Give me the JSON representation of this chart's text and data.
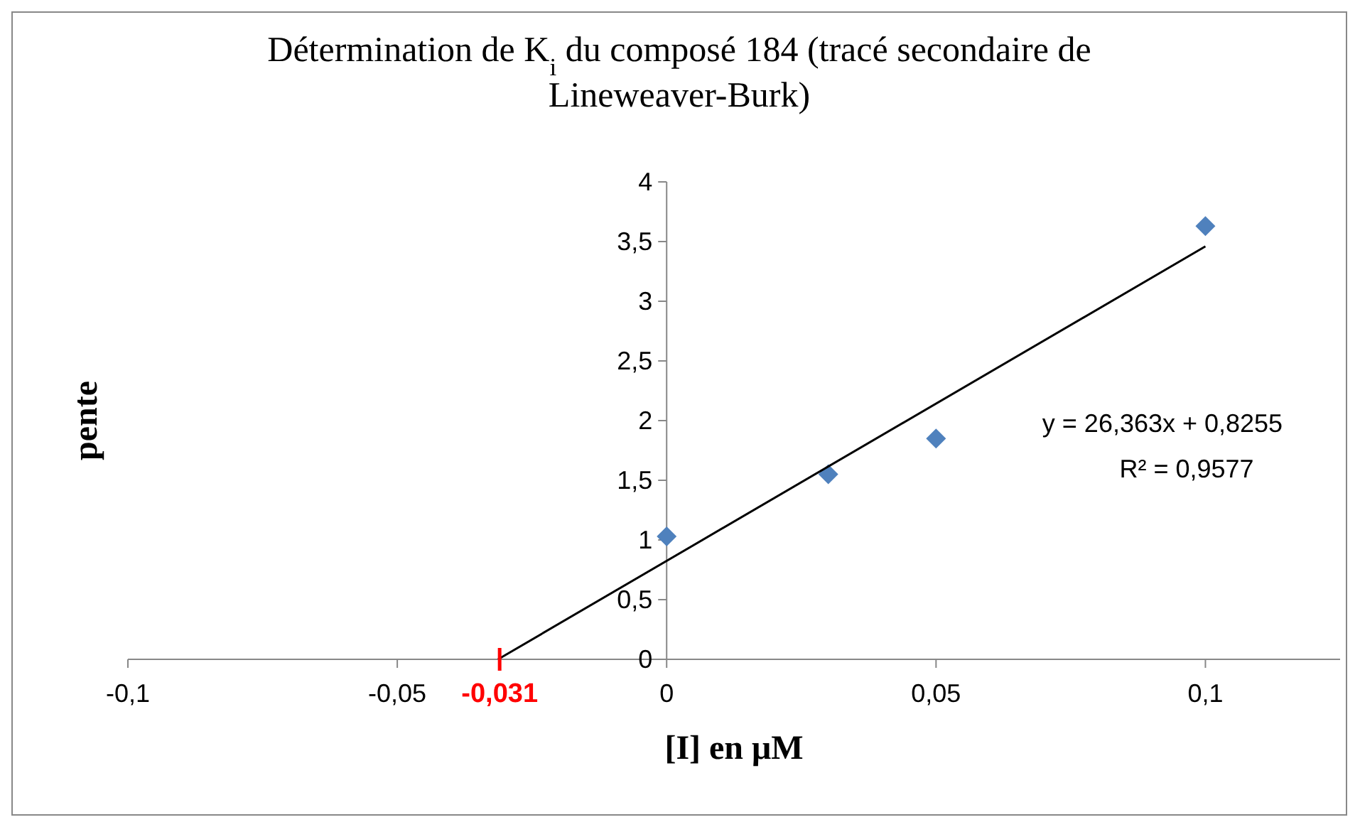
{
  "chart_data": {
    "type": "scatter",
    "title": "Détermination de K$_{i}$ du composé 184 (tracé secondaire de Lineweaver-Burk)",
    "xlabel": "[I] en μM",
    "ylabel": "pente",
    "xlim": [
      -0.1,
      0.125
    ],
    "ylim": [
      0,
      4
    ],
    "xticks": [
      {
        "value": -0.1,
        "label": "-0,1"
      },
      {
        "value": -0.05,
        "label": "-0,05"
      },
      0,
      {
        "value": 0.05,
        "label": "0,05"
      },
      {
        "value": 0.1,
        "label": "0,1"
      }
    ],
    "yticks": [
      0,
      {
        "value": 0.5,
        "label": "0,5"
      },
      1,
      {
        "value": 1.5,
        "label": "1,5"
      },
      2,
      {
        "value": 2.5,
        "label": "2,5"
      },
      3,
      {
        "value": 3.5,
        "label": "3,5"
      },
      4
    ],
    "grid": false,
    "series": [
      {
        "type": "scatter",
        "color": "#4f81bd",
        "marker": "diamond",
        "x": [
          0,
          0.03,
          0.05,
          0.1
        ],
        "values": [
          1.03,
          1.55,
          1.85,
          3.63
        ]
      },
      {
        "type": "line",
        "color": "#000000",
        "marker": "none",
        "x": [
          -0.0313,
          0.1
        ],
        "values": [
          0,
          3.46
        ]
      }
    ],
    "ref_lines": [
      {
        "axis": "x",
        "value": -0.031,
        "label": "-0,031",
        "color": "#ff0000"
      }
    ],
    "annotations": [
      "y = 26,363x + 0,8255",
      "R² = 0,9577"
    ]
  }
}
